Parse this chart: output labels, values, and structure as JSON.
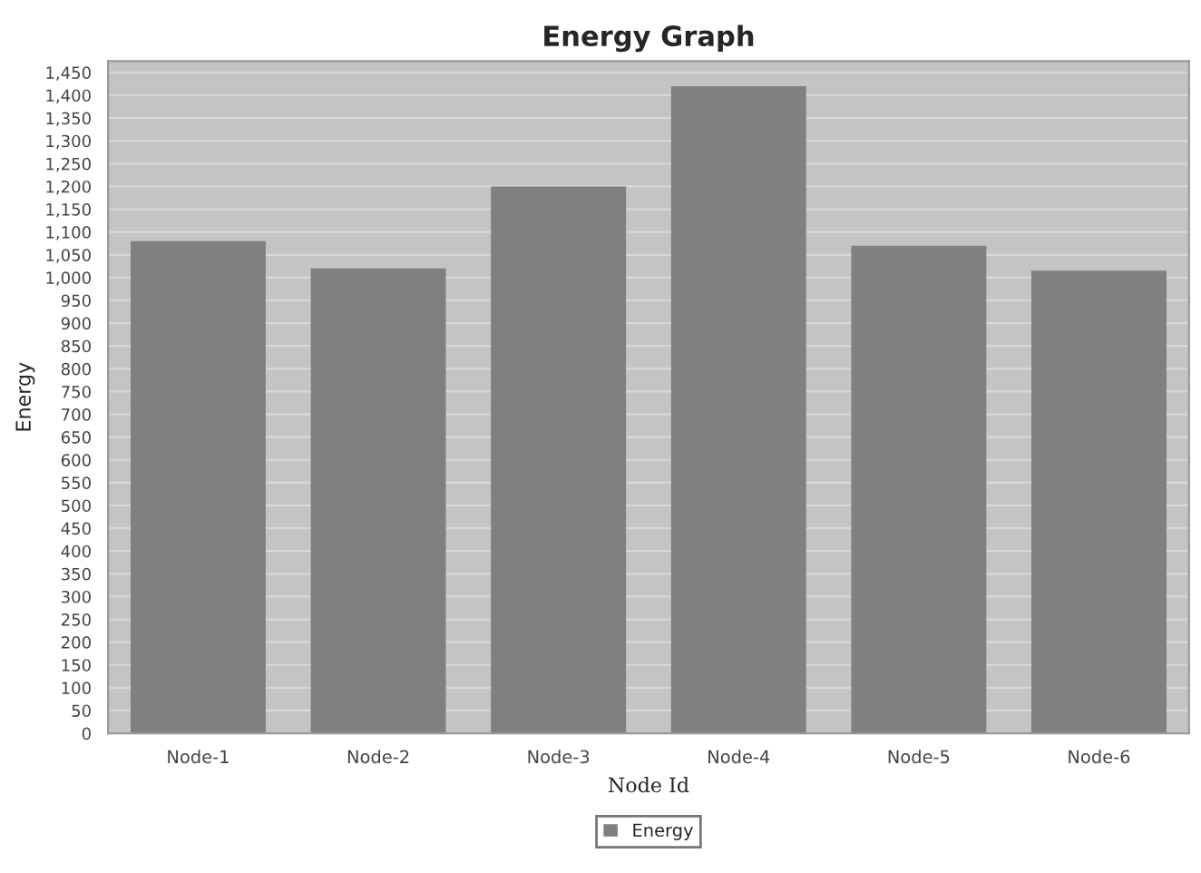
{
  "chart_data": {
    "type": "bar",
    "title": "Energy Graph",
    "xlabel": "Node Id",
    "ylabel": "Energy",
    "categories": [
      "Node-1",
      "Node-2",
      "Node-3",
      "Node-4",
      "Node-5",
      "Node-6"
    ],
    "series": [
      {
        "name": "Energy",
        "color": "#808080",
        "values": [
          1080,
          1020,
          1200,
          1420,
          1070,
          1015
        ]
      }
    ],
    "ylim": [
      0,
      1475
    ],
    "yticks": [
      0,
      50,
      100,
      150,
      200,
      250,
      300,
      350,
      400,
      450,
      500,
      550,
      600,
      650,
      700,
      750,
      800,
      850,
      900,
      950,
      {
        "value": 1000,
        "label": "1,000"
      },
      {
        "value": 1050,
        "label": "1,050"
      },
      {
        "value": 1100,
        "label": "1,100"
      },
      {
        "value": 1150,
        "label": "1,150"
      },
      {
        "value": 1200,
        "label": "1,200"
      },
      {
        "value": 1250,
        "label": "1,250"
      },
      {
        "value": 1300,
        "label": "1,300"
      },
      {
        "value": 1350,
        "label": "1,350"
      },
      {
        "value": 1400,
        "label": "1,400"
      },
      {
        "value": 1450,
        "label": "1,450"
      }
    ],
    "grid": "y",
    "legend": "bottom"
  }
}
